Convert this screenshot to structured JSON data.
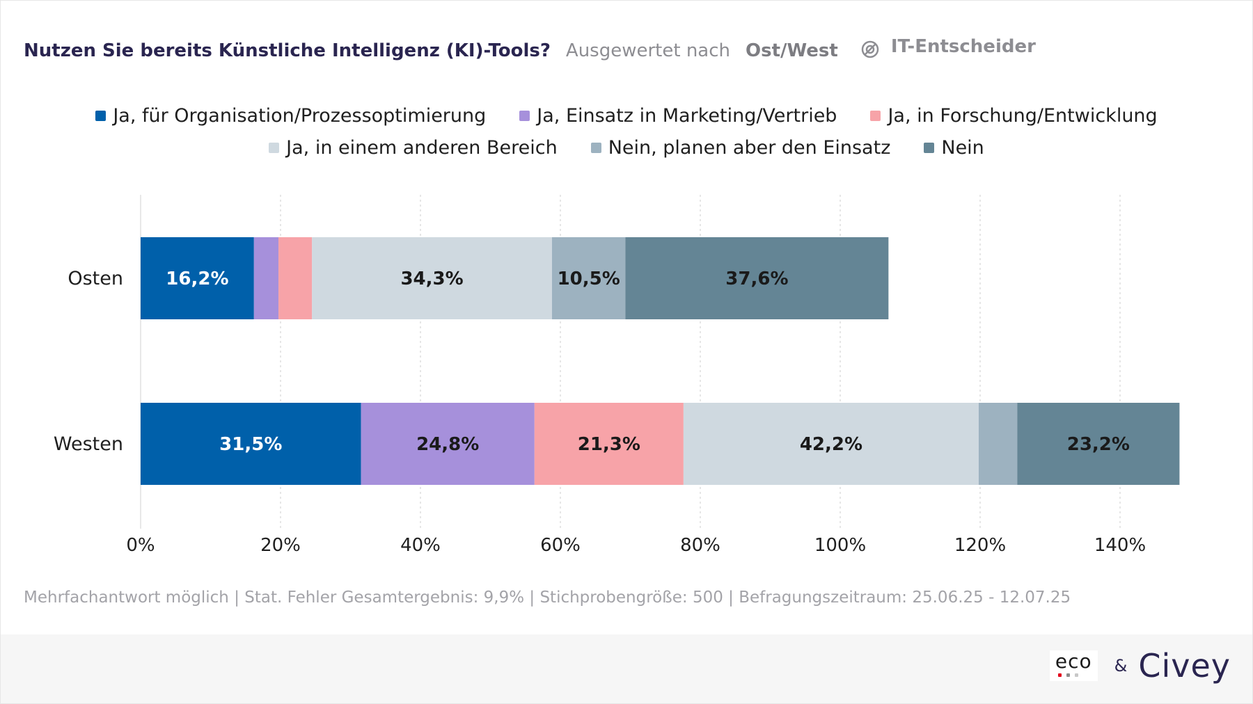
{
  "header": {
    "title": "Nutzen Sie bereits Künstliche Intelligenz (KI)-Tools?",
    "evaluated_by_label": "Ausgewertet nach",
    "evaluated_by_value": "Ost/West",
    "audience": "IT-Entscheider",
    "audience_icon": "target-group-icon"
  },
  "footnote": "Mehrfachantwort möglich | Stat. Fehler Gesamtergebnis: 9,9% | Stichprobengröße: 500 | Befragungszeitraum: 25.06.25 - 12.07.25",
  "logos": {
    "eco": "eco",
    "ampersand": "&",
    "civey": "Civey"
  },
  "chart_data": {
    "type": "bar",
    "orientation": "horizontal",
    "stacked": true,
    "categories": [
      "Osten",
      "Westen"
    ],
    "series": [
      {
        "name": "Ja, für Organisation/Prozessoptimierung",
        "color": "#0060aa",
        "label_color": "#ffffff",
        "values": [
          16.2,
          31.5
        ],
        "labels": [
          "16,2%",
          "31,5%"
        ]
      },
      {
        "name": "Ja, Einsatz in Marketing/Vertrieb",
        "color": "#a690db",
        "label_color": "#1a1a1a",
        "values": [
          3.5,
          24.8
        ],
        "labels": [
          "",
          "24,8%"
        ]
      },
      {
        "name": "Ja, in Forschung/Entwicklung",
        "color": "#f7a3a8",
        "label_color": "#1a1a1a",
        "values": [
          4.8,
          21.3
        ],
        "labels": [
          "",
          "21,3%"
        ]
      },
      {
        "name": "Ja, in einem anderen Bereich",
        "color": "#cfd9e0",
        "label_color": "#1a1a1a",
        "values": [
          34.3,
          42.2
        ],
        "labels": [
          "34,3%",
          "42,2%"
        ]
      },
      {
        "name": "Nein, planen aber den Einsatz",
        "color": "#9db2c0",
        "label_color": "#1a1a1a",
        "values": [
          10.5,
          5.5
        ],
        "labels": [
          "10,5%",
          ""
        ]
      },
      {
        "name": "Nein",
        "color": "#648595",
        "label_color": "#1a1a1a",
        "values": [
          37.6,
          23.2
        ],
        "labels": [
          "37,6%",
          "23,2%"
        ]
      }
    ],
    "xlim": [
      0,
      140
    ],
    "xticks": [
      0,
      20,
      40,
      60,
      80,
      100,
      120,
      140
    ],
    "xtick_labels": [
      "0%",
      "20%",
      "40%",
      "60%",
      "80%",
      "100%",
      "120%",
      "140%"
    ],
    "grid": true,
    "legend_position": "top-center"
  }
}
